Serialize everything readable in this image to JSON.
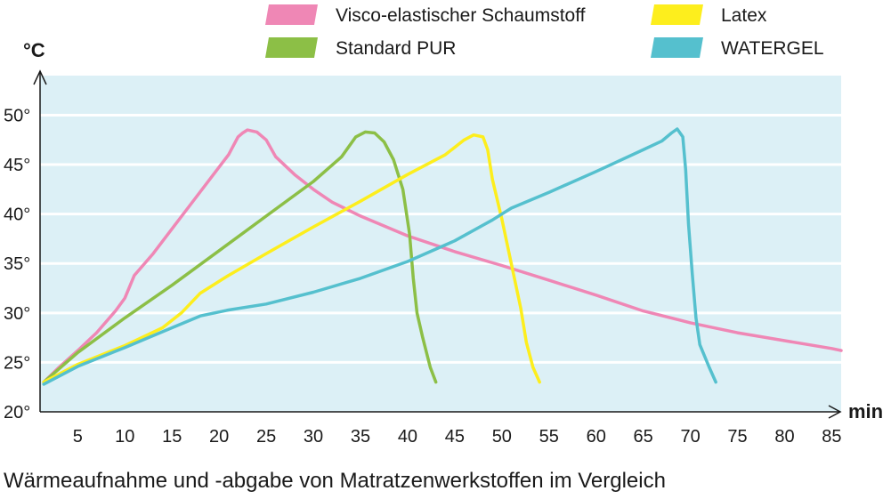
{
  "caption": "Wärmeaufnahme und -abgabe von Matratzenwerkstoffen im Vergleich",
  "chart_data": {
    "type": "line",
    "title": "",
    "xlabel": "min",
    "ylabel": "°C",
    "xlim": [
      1,
      86
    ],
    "ylim": [
      20,
      54
    ],
    "grid": "horizontal",
    "legend_position": "top",
    "background_color": "#dcf0f6",
    "x_ticks": [
      5,
      10,
      15,
      20,
      25,
      30,
      35,
      40,
      45,
      50,
      55,
      60,
      65,
      70,
      75,
      80,
      85
    ],
    "x_tick_labels": [
      "5",
      "10",
      "15",
      "20",
      "25",
      "30",
      "35",
      "40",
      "45",
      "50",
      "55",
      "60",
      "65",
      "70",
      "75",
      "80",
      "85"
    ],
    "y_ticks": [
      20,
      25,
      30,
      35,
      40,
      45,
      50
    ],
    "y_tick_labels": [
      "20°",
      "25°",
      "30°",
      "35°",
      "40°",
      "45°",
      "50°"
    ],
    "series": [
      {
        "name": "Visco-elastischer Schaumstoff",
        "color": "#ef87b5",
        "points": [
          [
            1.4,
            23
          ],
          [
            3,
            24.5
          ],
          [
            5,
            26.2
          ],
          [
            7,
            28
          ],
          [
            9,
            30.2
          ],
          [
            10,
            31.5
          ],
          [
            11,
            33.8
          ],
          [
            13,
            36
          ],
          [
            15,
            38.5
          ],
          [
            17,
            41
          ],
          [
            19,
            43.5
          ],
          [
            21,
            46
          ],
          [
            22,
            47.8
          ],
          [
            22.5,
            48.2
          ],
          [
            23,
            48.5
          ],
          [
            24,
            48.3
          ],
          [
            25,
            47.5
          ],
          [
            26,
            45.8
          ],
          [
            28,
            44
          ],
          [
            30,
            42.5
          ],
          [
            32,
            41.2
          ],
          [
            35,
            39.8
          ],
          [
            40,
            37.8
          ],
          [
            45,
            36.2
          ],
          [
            50,
            34.8
          ],
          [
            55,
            33.3
          ],
          [
            60,
            31.8
          ],
          [
            65,
            30.2
          ],
          [
            70,
            29
          ],
          [
            75,
            28
          ],
          [
            80,
            27.2
          ],
          [
            85,
            26.4
          ],
          [
            86,
            26.2
          ]
        ]
      },
      {
        "name": "Standard PUR",
        "color": "#8cbf46",
        "points": [
          [
            1.4,
            23
          ],
          [
            5,
            26
          ],
          [
            10,
            29.5
          ],
          [
            15,
            32.8
          ],
          [
            20,
            36.3
          ],
          [
            25,
            39.8
          ],
          [
            30,
            43.3
          ],
          [
            33,
            45.8
          ],
          [
            34.5,
            47.8
          ],
          [
            35.5,
            48.3
          ],
          [
            36.5,
            48.2
          ],
          [
            37.5,
            47.3
          ],
          [
            38.5,
            45.5
          ],
          [
            39.5,
            42.5
          ],
          [
            40.2,
            38
          ],
          [
            40.6,
            33.5
          ],
          [
            41,
            30
          ],
          [
            41.6,
            27.5
          ],
          [
            42.4,
            24.5
          ],
          [
            43,
            23
          ]
        ]
      },
      {
        "name": "Latex",
        "color": "#fdee1d",
        "points": [
          [
            1.4,
            23
          ],
          [
            5,
            24.8
          ],
          [
            10,
            26.7
          ],
          [
            14,
            28.5
          ],
          [
            16,
            30
          ],
          [
            18,
            32
          ],
          [
            21,
            33.8
          ],
          [
            25,
            36
          ],
          [
            30,
            38.7
          ],
          [
            35,
            41.3
          ],
          [
            40,
            44
          ],
          [
            44,
            46
          ],
          [
            46,
            47.5
          ],
          [
            47,
            48
          ],
          [
            48,
            47.8
          ],
          [
            48.5,
            46.5
          ],
          [
            49,
            43.5
          ],
          [
            50,
            39.5
          ],
          [
            51,
            35
          ],
          [
            52,
            30.5
          ],
          [
            52.6,
            27
          ],
          [
            53.3,
            24.5
          ],
          [
            54,
            23
          ]
        ]
      },
      {
        "name": "WATERGEL",
        "color": "#55c0ce",
        "points": [
          [
            1.4,
            22.8
          ],
          [
            5,
            24.6
          ],
          [
            10,
            26.5
          ],
          [
            15,
            28.5
          ],
          [
            18,
            29.7
          ],
          [
            21,
            30.3
          ],
          [
            25,
            30.9
          ],
          [
            30,
            32.1
          ],
          [
            35,
            33.5
          ],
          [
            40,
            35.2
          ],
          [
            45,
            37.3
          ],
          [
            49,
            39.4
          ],
          [
            51,
            40.6
          ],
          [
            55,
            42.2
          ],
          [
            60,
            44.3
          ],
          [
            65,
            46.5
          ],
          [
            67,
            47.4
          ],
          [
            68,
            48.2
          ],
          [
            68.6,
            48.6
          ],
          [
            69.2,
            47.8
          ],
          [
            69.5,
            44.5
          ],
          [
            69.8,
            39
          ],
          [
            70.2,
            34
          ],
          [
            70.6,
            29.5
          ],
          [
            71,
            26.8
          ],
          [
            72,
            24.5
          ],
          [
            72.7,
            23
          ]
        ]
      }
    ]
  }
}
